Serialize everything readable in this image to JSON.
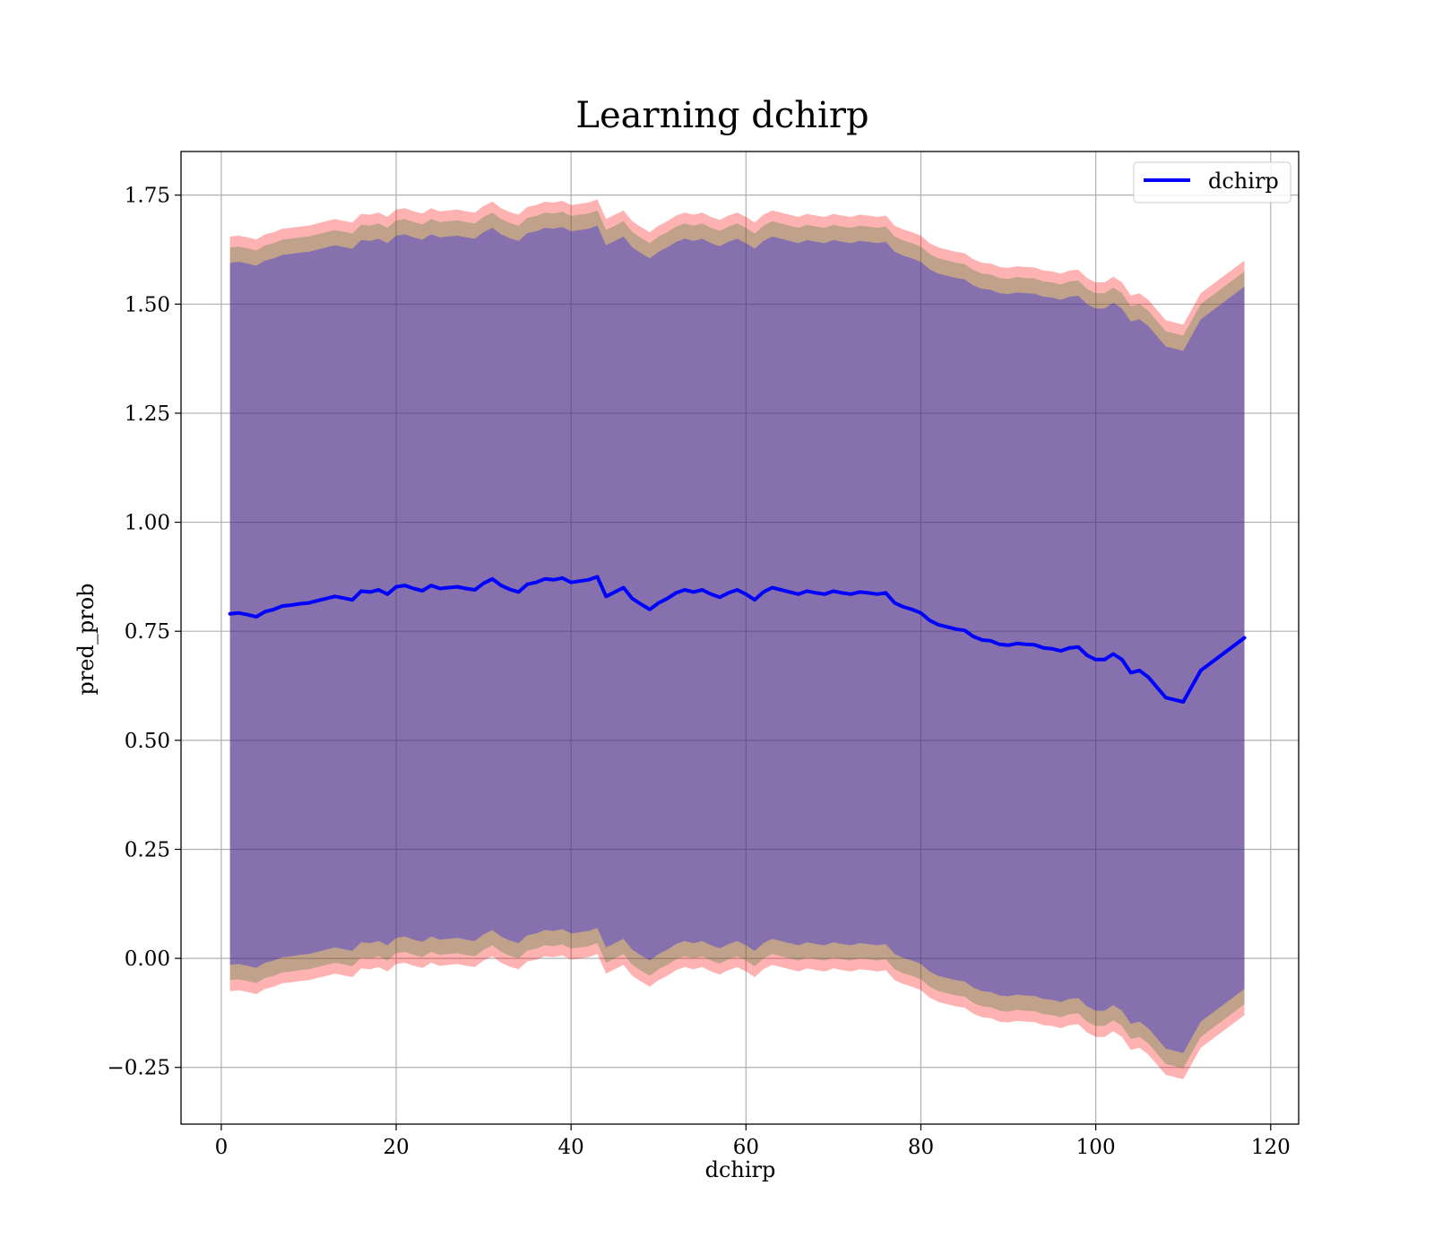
{
  "chart_data": {
    "type": "line",
    "title": "Learning dchirp",
    "xlabel": "dchirp",
    "ylabel": "pred_prob",
    "xlim": [
      -4.6,
      123.2
    ],
    "ylim": [
      -0.38,
      1.85
    ],
    "grid": true,
    "legend_position": "top-right",
    "x_ticks": [
      0,
      20,
      40,
      60,
      80,
      100,
      120
    ],
    "x_tick_labels": [
      "0",
      "20",
      "40",
      "60",
      "80",
      "100",
      "120"
    ],
    "y_ticks": [
      -0.25,
      0.0,
      0.25,
      0.5,
      0.75,
      1.0,
      1.25,
      1.5,
      1.75
    ],
    "y_tick_labels": [
      "−0.25",
      "0.00",
      "0.25",
      "0.50",
      "0.75",
      "1.00",
      "1.25",
      "1.50",
      "1.75"
    ],
    "series": [
      {
        "name": "dchirp",
        "color": "#0000ff",
        "x": [
          1,
          2,
          3,
          4,
          5,
          6,
          7,
          8,
          9,
          10,
          11,
          12,
          13,
          14,
          15,
          16,
          17,
          18,
          19,
          20,
          21,
          22,
          23,
          24,
          25,
          26,
          27,
          28,
          29,
          30,
          31,
          32,
          33,
          34,
          35,
          36,
          37,
          38,
          39,
          40,
          41,
          42,
          43,
          44,
          45,
          46,
          47,
          48,
          49,
          50,
          51,
          52,
          53,
          54,
          55,
          56,
          57,
          58,
          59,
          60,
          61,
          62,
          63,
          64,
          65,
          66,
          67,
          68,
          69,
          70,
          71,
          72,
          73,
          74,
          75,
          76,
          77,
          78,
          79,
          80,
          81,
          82,
          83,
          84,
          85,
          86,
          87,
          88,
          89,
          90,
          91,
          92,
          93,
          94,
          95,
          96,
          97,
          98,
          99,
          100,
          101,
          102,
          103,
          104,
          105,
          106,
          108,
          110,
          112,
          117
        ],
        "values": [
          0.79,
          0.792,
          0.788,
          0.783,
          0.795,
          0.8,
          0.808,
          0.81,
          0.813,
          0.815,
          0.82,
          0.825,
          0.83,
          0.826,
          0.822,
          0.842,
          0.84,
          0.845,
          0.835,
          0.852,
          0.855,
          0.848,
          0.843,
          0.855,
          0.848,
          0.85,
          0.852,
          0.848,
          0.845,
          0.86,
          0.87,
          0.855,
          0.846,
          0.84,
          0.858,
          0.862,
          0.87,
          0.868,
          0.872,
          0.862,
          0.865,
          0.868,
          0.875,
          0.83,
          0.84,
          0.85,
          0.825,
          0.812,
          0.8,
          0.815,
          0.825,
          0.838,
          0.845,
          0.84,
          0.845,
          0.835,
          0.828,
          0.838,
          0.845,
          0.835,
          0.822,
          0.84,
          0.85,
          0.845,
          0.84,
          0.835,
          0.842,
          0.838,
          0.835,
          0.842,
          0.838,
          0.835,
          0.84,
          0.838,
          0.835,
          0.838,
          0.815,
          0.806,
          0.8,
          0.792,
          0.775,
          0.765,
          0.76,
          0.755,
          0.752,
          0.738,
          0.73,
          0.728,
          0.72,
          0.718,
          0.722,
          0.72,
          0.719,
          0.712,
          0.71,
          0.705,
          0.712,
          0.714,
          0.695,
          0.685,
          0.685,
          0.698,
          0.685,
          0.655,
          0.66,
          0.645,
          0.598,
          0.588,
          0.66,
          0.735
        ]
      }
    ],
    "bands": [
      {
        "color": "#ff0000",
        "opacity": 0.3,
        "offset": 0.865
      },
      {
        "color": "#2e7d32",
        "opacity": 0.3,
        "offset": 0.84
      },
      {
        "color": "#0000ff",
        "opacity": 0.3,
        "offset": 0.805
      }
    ]
  }
}
